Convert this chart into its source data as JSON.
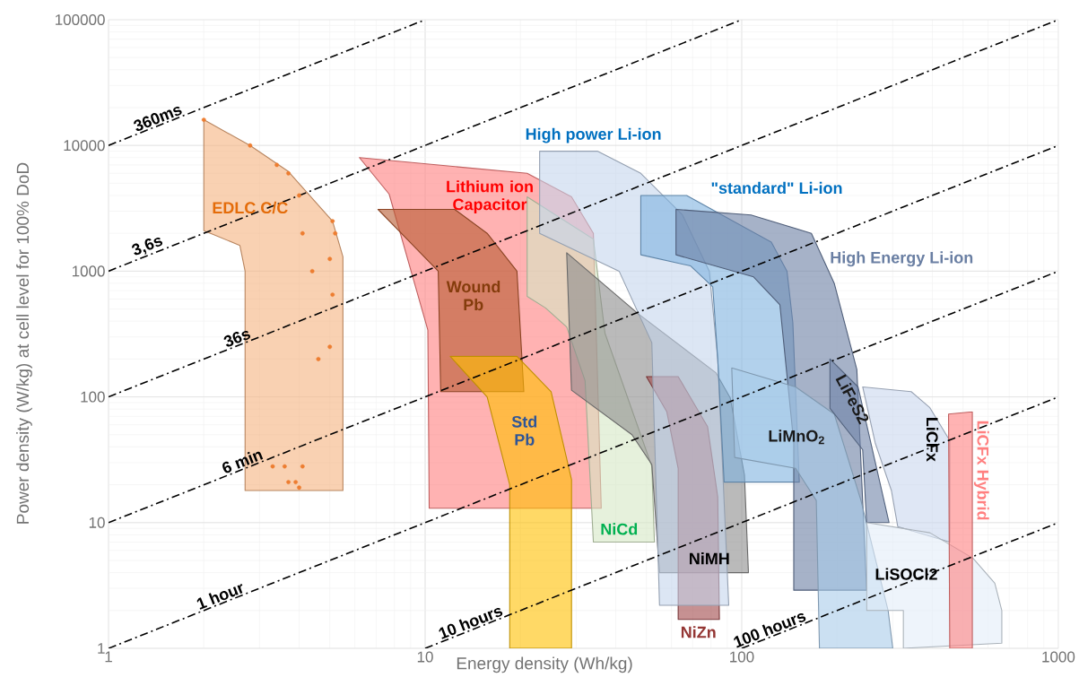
{
  "chart_data": {
    "type": "area",
    "xlabel": "Energy density (Wh/kg)",
    "ylabel": "Power density (W/kg) at cell level for 100% DoD",
    "xlim": [
      1,
      1000
    ],
    "ylim": [
      1,
      100000
    ],
    "xticks": [
      1,
      10,
      100,
      1000
    ],
    "yticks": [
      1,
      10,
      100,
      1000,
      10000,
      100000
    ],
    "log": "xy",
    "grid": true,
    "series": [
      {
        "name": "EDLC C/C",
        "color": "#f5b27f",
        "x": [
          2,
          2.8,
          3.7,
          5.1,
          5.5,
          5.5,
          2.7,
          2.7,
          2.6,
          2.1,
          2
        ],
        "values": [
          16000,
          10000,
          6200,
          2500,
          1300,
          18,
          18,
          1000,
          1600,
          2000,
          2100
        ]
      },
      {
        "name": "Lithium ion Capacitor",
        "color": "#ff7f7f",
        "x": [
          6.2,
          21,
          29,
          34,
          36,
          10.3,
          10.2,
          7.7
        ],
        "values": [
          8000,
          6000,
          3900,
          2000,
          13,
          13,
          340,
          4100
        ]
      },
      {
        "name": "Wound Pb",
        "color": "#b85a30",
        "x": [
          7.1,
          12.4,
          15.7,
          19.5,
          20.5,
          11.2,
          11
        ],
        "values": [
          3100,
          3100,
          2000,
          1000,
          110,
          110,
          1000
        ]
      },
      {
        "name": "Std Pb",
        "color": "#ffc000",
        "x": [
          12,
          19.5,
          25,
          29,
          29,
          18.5,
          18.5,
          15.7
        ],
        "values": [
          210,
          210,
          110,
          22,
          1,
          1,
          20,
          100
        ]
      },
      {
        "name": "NiCd",
        "color": "#d5e8c4",
        "x": [
          21,
          34,
          37,
          52,
          53,
          34,
          32,
          28,
          24,
          21
        ],
        "values": [
          3900,
          1800,
          320,
          28,
          7,
          7,
          135,
          360,
          510,
          630
        ]
      },
      {
        "name": "NiMH",
        "color": "#8c8c8c",
        "x": [
          28,
          47,
          83,
          92,
          102,
          105,
          55,
          52,
          45,
          29
        ],
        "values": [
          1400,
          460,
          155,
          98,
          24,
          4,
          4,
          29,
          50,
          113
        ]
      },
      {
        "name": "NiZn",
        "color": "#a0474a",
        "x": [
          50,
          63,
          78,
          84,
          85,
          63,
          63,
          58
        ],
        "values": [
          145,
          145,
          58,
          16,
          1.7,
          1.7,
          27,
          76
        ]
      },
      {
        "name": "High power Li-ion",
        "color": "#c5d5ec",
        "x": [
          23,
          35,
          48,
          65,
          79,
          84,
          91,
          55,
          52,
          41,
          23
        ],
        "values": [
          9000,
          9000,
          6000,
          2800,
          1000,
          200,
          2.2,
          2.2,
          270,
          1000,
          2000
        ]
      },
      {
        "name": "\"standard\" Li-ion",
        "color": "#7fb2e0",
        "x": [
          48,
          67,
          124,
          139,
          145,
          152,
          88,
          84,
          81,
          69,
          48
        ],
        "values": [
          4000,
          4000,
          1700,
          1000,
          390,
          21,
          21,
          200,
          750,
          1100,
          1350
        ]
      },
      {
        "name": "High Energy Li-ion",
        "color": "#6a7fa3",
        "x": [
          62,
          107,
          166,
          196,
          231,
          248,
          146,
          146,
          132,
          109,
          62
        ],
        "values": [
          3100,
          2800,
          2000,
          800,
          165,
          2.9,
          2.9,
          43,
          540,
          900,
          1350
        ]
      },
      {
        "name": "LiMnO$_{2}$",
        "color": "#a9cbe9",
        "x": [
          93,
          148,
          196,
          238,
          290,
          300,
          176,
          172,
          148,
          95
        ],
        "values": [
          170,
          120,
          73,
          15,
          2,
          1,
          1,
          15,
          27,
          33
        ]
      },
      {
        "name": "LiFeS2",
        "color": "#6f84a8",
        "x": [
          190,
          233,
          292,
          248,
          241,
          190
        ],
        "values": [
          200,
          120,
          10,
          10,
          38,
          81
        ]
      },
      {
        "name": "LiCFx",
        "color": "#c9d7ee",
        "x": [
          241,
          343,
          393,
          454,
          454,
          311,
          297,
          264
        ],
        "values": [
          120,
          110,
          82,
          45,
          7,
          9.3,
          18,
          43
        ]
      },
      {
        "name": "LiSOCl2",
        "color": "#e3edf8",
        "x": [
          248,
          393,
          538,
          630,
          663,
          663,
          324,
          324,
          248
        ],
        "values": [
          10,
          8.3,
          5.2,
          3.3,
          2,
          1.1,
          1,
          2,
          2
        ]
      },
      {
        "name": "LiCFx Hybrid",
        "color": "#ff8080",
        "x": [
          450,
          535,
          535,
          454
        ],
        "values": [
          73,
          76,
          1,
          1
        ]
      },
      {
        "type": "scatter",
        "marker": "circle",
        "color": "#ed7d31",
        "x": [
          2.0,
          2.8,
          3.4,
          3.7,
          4.0,
          5.1,
          5.2,
          4.1,
          5.0,
          4.4,
          5.1,
          5.0,
          4.6,
          3.3,
          3.6,
          4.1,
          3.7,
          3.9,
          4.0
        ],
        "values": [
          16000,
          10000,
          7000,
          6000,
          4000,
          2500,
          2000,
          2000,
          1250,
          1000,
          650,
          250,
          200,
          28,
          28,
          28,
          21,
          21,
          19
        ]
      },
      {
        "type": "line",
        "line_style": "dashed",
        "name": "360ms",
        "color": "#000000",
        "x": [
          1,
          10
        ],
        "values": [
          10000,
          100000
        ]
      },
      {
        "type": "line",
        "line_style": "dashed",
        "name": "3,6s",
        "color": "#000000",
        "x": [
          1,
          100
        ],
        "values": [
          1000,
          100000
        ]
      },
      {
        "type": "line",
        "line_style": "dashed",
        "name": "36s",
        "color": "#000000",
        "x": [
          1,
          1000
        ],
        "values": [
          100,
          100000
        ]
      },
      {
        "type": "line",
        "line_style": "dashed",
        "name": "6 min",
        "color": "#000000",
        "x": [
          1,
          1000
        ],
        "values": [
          10,
          10000
        ]
      },
      {
        "type": "line",
        "line_style": "dashed",
        "name": "1 hour",
        "color": "#000000",
        "x": [
          1,
          1000
        ],
        "values": [
          1,
          1000
        ]
      },
      {
        "type": "line",
        "line_style": "dashed",
        "name": "10 hours",
        "color": "#000000",
        "x": [
          10,
          1000
        ],
        "values": [
          1,
          100
        ]
      },
      {
        "type": "line",
        "line_style": "dashed",
        "name": "100 hours",
        "color": "#000000",
        "x": [
          100,
          1000
        ],
        "values": [
          1,
          10
        ]
      }
    ]
  }
}
